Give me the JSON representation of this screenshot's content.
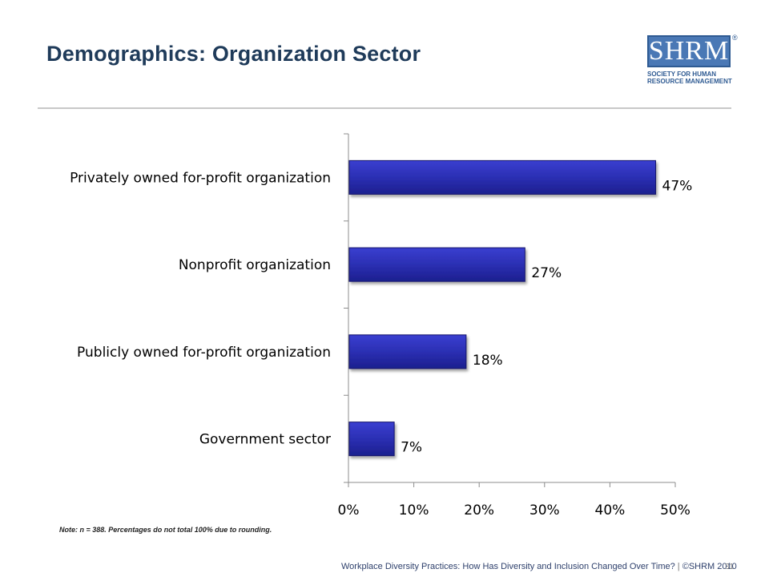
{
  "header": {
    "title": "Demographics: Organization Sector"
  },
  "logo": {
    "word": "SHRM",
    "registered": "®",
    "tagline_line1": "SOCIETY FOR HUMAN",
    "tagline_line2": "RESOURCE MANAGEMENT"
  },
  "chart_data": {
    "type": "bar",
    "orientation": "horizontal",
    "categories": [
      "Privately owned for-profit organization",
      "Nonprofit organization",
      "Publicly owned for-profit organization",
      "Government sector"
    ],
    "values": [
      47,
      27,
      18,
      7
    ],
    "value_labels": [
      "47%",
      "27%",
      "18%",
      "7%"
    ],
    "xlim": [
      0,
      50
    ],
    "xticks": [
      0,
      10,
      20,
      30,
      40,
      50
    ],
    "xtick_labels": [
      "0%",
      "10%",
      "20%",
      "30%",
      "40%",
      "50%"
    ],
    "grid": false,
    "legend": "none",
    "bar_color": "#2b2fb3",
    "bar_edge_color": "#14166b"
  },
  "note": "Note: n = 388. Percentages do not total 100% due to rounding.",
  "footer": {
    "text": "Workplace Diversity Practices: How Has Diversity and Inclusion Changed Over Time?",
    "separator": "|",
    "copyright": "©SHRM 2010",
    "page_number": "31"
  }
}
